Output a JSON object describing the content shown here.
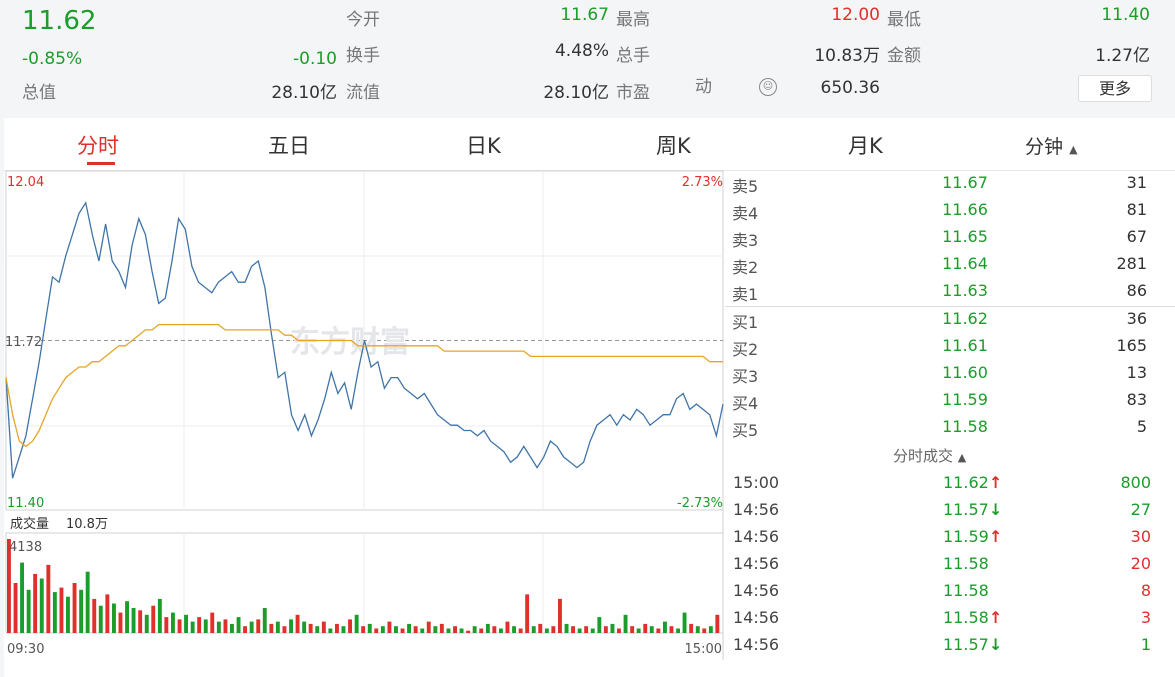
{
  "header": {
    "price": "11.62",
    "change_pct": "-0.85%",
    "change": "-0.10",
    "open_label": "今开",
    "open_value": "11.67",
    "high_label": "最高",
    "high_value": "12.00",
    "low_label": "最低",
    "low_value": "11.40",
    "turnover_label": "换手",
    "turnover_value": "4.48%",
    "volume_label": "总手",
    "volume_value": "10.83万",
    "amount_label": "金额",
    "amount_value": "1.27亿",
    "mktcap_label": "总值",
    "mktcap_value": "28.10亿",
    "float_label": "流值",
    "float_value": "28.10亿",
    "pe_label": "市盈",
    "pe_suffix": "动",
    "pe_value": "650.36",
    "more_button": "更多",
    "emoji_icon": "smiley-icon",
    "colors": {
      "up": "#e0302b",
      "down": "#1a9d2a"
    }
  },
  "tabs": [
    "分时",
    "五日",
    "日K",
    "周K",
    "月K",
    "分钟"
  ],
  "active_tab": "分时",
  "chart_labels": {
    "price_max": "12.04",
    "price_min": "11.40",
    "price_ref": "11.72",
    "pct_max": "2.73%",
    "pct_min": "-2.73%",
    "volume_title": "成交量",
    "volume_total": "10.8万",
    "volume_max": "4138",
    "time_start": "09:30",
    "time_end": "15:00",
    "watermark": "东方财富"
  },
  "chart_data": [
    {
      "type": "line",
      "title": "",
      "ylim": [
        11.4,
        12.04
      ],
      "ref_price": 11.72,
      "xlabels": [
        "09:30",
        "15:00"
      ],
      "series": [
        {
          "values": [
            11.65,
            11.46,
            11.5,
            11.54,
            11.61,
            11.68,
            11.76,
            11.84,
            11.83,
            11.88,
            11.92,
            11.96,
            11.98,
            11.92,
            11.87,
            11.94,
            11.87,
            11.85,
            11.82,
            11.9,
            11.95,
            11.92,
            11.85,
            11.79,
            11.8,
            11.87,
            11.95,
            11.93,
            11.86,
            11.83,
            11.82,
            11.81,
            11.83,
            11.84,
            11.85,
            11.83,
            11.83,
            11.86,
            11.87,
            11.82,
            11.73,
            11.65,
            11.66,
            11.58,
            11.55,
            11.58,
            11.54,
            11.57,
            11.61,
            11.66,
            11.62,
            11.64,
            11.59,
            11.66,
            11.72,
            11.67,
            11.68,
            11.63,
            11.65,
            11.65,
            11.63,
            11.62,
            11.61,
            11.62,
            11.6,
            11.58,
            11.57,
            11.56,
            11.56,
            11.55,
            11.55,
            11.54,
            11.55,
            11.53,
            11.52,
            11.51,
            11.49,
            11.5,
            11.52,
            11.5,
            11.48,
            11.5,
            11.53,
            11.52,
            11.5,
            11.49,
            11.48,
            11.49,
            11.53,
            11.56,
            11.57,
            11.58,
            11.56,
            11.58,
            11.57,
            11.59,
            11.58,
            11.56,
            11.57,
            11.58,
            11.58,
            11.61,
            11.62,
            11.59,
            11.6,
            11.59,
            11.58,
            11.54,
            11.6
          ]
        },
        {
          "name": "",
          "values": [
            11.65,
            11.58,
            11.53,
            11.52,
            11.53,
            11.55,
            11.58,
            11.61,
            11.63,
            11.65,
            11.66,
            11.67,
            11.67,
            11.68,
            11.68,
            11.69,
            11.7,
            11.71,
            11.71,
            11.72,
            11.73,
            11.74,
            11.74,
            11.75,
            11.75,
            11.75,
            11.75,
            11.75,
            11.75,
            11.75,
            11.75,
            11.75,
            11.75,
            11.74,
            11.74,
            11.74,
            11.74,
            11.74,
            11.74,
            11.74,
            11.74,
            11.74,
            11.73,
            11.73,
            11.72,
            11.72,
            11.72,
            11.72,
            11.72,
            11.72,
            11.72,
            11.72,
            11.72,
            11.71,
            11.71,
            11.71,
            11.71,
            11.71,
            11.71,
            11.71,
            11.71,
            11.71,
            11.71,
            11.71,
            11.71,
            11.71,
            11.7,
            11.7,
            11.7,
            11.7,
            11.7,
            11.7,
            11.7,
            11.7,
            11.7,
            11.7,
            11.7,
            11.7,
            11.7,
            11.69,
            11.69,
            11.69,
            11.69,
            11.69,
            11.69,
            11.69,
            11.69,
            11.69,
            11.69,
            11.69,
            11.69,
            11.69,
            11.69,
            11.69,
            11.69,
            11.69,
            11.69,
            11.69,
            11.69,
            11.69,
            11.69,
            11.69,
            11.69,
            11.69,
            11.69,
            11.69,
            11.68,
            11.68,
            11.68
          ]
        }
      ]
    },
    {
      "type": "bar",
      "title": "成交量",
      "ylim": [
        0,
        4138
      ],
      "xlabels": [
        "09:30",
        "15:00"
      ],
      "values": [
        4138,
        2200,
        3100,
        1900,
        2600,
        2400,
        3000,
        1800,
        2000,
        1600,
        2200,
        1900,
        2700,
        1500,
        1200,
        1700,
        1300,
        900,
        1400,
        1100,
        1000,
        800,
        1200,
        1500,
        700,
        900,
        600,
        800,
        500,
        700,
        600,
        900,
        500,
        600,
        400,
        700,
        300,
        500,
        600,
        1100,
        400,
        500,
        300,
        600,
        800,
        500,
        400,
        300,
        500,
        200,
        400,
        300,
        600,
        800,
        300,
        400,
        200,
        300,
        500,
        300,
        200,
        400,
        300,
        200,
        500,
        300,
        400,
        200,
        300,
        200,
        100,
        300,
        200,
        400,
        300,
        200,
        500,
        300,
        200,
        1700,
        300,
        400,
        200,
        300,
        1500,
        400,
        300,
        200,
        300,
        200,
        700,
        300,
        400,
        200,
        800,
        300,
        200,
        400,
        300,
        200,
        500,
        300,
        200,
        900,
        400,
        300,
        200,
        300,
        800
      ],
      "colors": [
        "up",
        "up",
        "down",
        "down",
        "up",
        "down",
        "up",
        "down",
        "up",
        "down",
        "up",
        "down",
        "down",
        "up",
        "down",
        "up",
        "down",
        "up",
        "down",
        "down",
        "up",
        "down",
        "up",
        "down",
        "up",
        "down",
        "up",
        "down",
        "down",
        "up",
        "down",
        "up",
        "down",
        "up",
        "down",
        "down",
        "up",
        "down",
        "up",
        "down",
        "up",
        "down",
        "up",
        "down",
        "up",
        "down",
        "up",
        "down",
        "up",
        "down",
        "up",
        "down",
        "up",
        "down",
        "up",
        "down",
        "up",
        "down",
        "up",
        "down",
        "up",
        "down",
        "up",
        "down",
        "up",
        "down",
        "up",
        "down",
        "up",
        "down",
        "up",
        "down",
        "up",
        "down",
        "up",
        "down",
        "up",
        "down",
        "up",
        "up",
        "down",
        "up",
        "down",
        "up",
        "up",
        "down",
        "up",
        "down",
        "up",
        "down",
        "down",
        "up",
        "down",
        "up",
        "down",
        "up",
        "down",
        "up",
        "down",
        "up",
        "down",
        "up",
        "down",
        "down",
        "up",
        "down",
        "up",
        "down",
        "up",
        "down",
        "up"
      ]
    }
  ],
  "orderbook": {
    "asks": [
      {
        "label": "卖5",
        "price": "11.67",
        "vol": "31"
      },
      {
        "label": "卖4",
        "price": "11.66",
        "vol": "81"
      },
      {
        "label": "卖3",
        "price": "11.65",
        "vol": "67"
      },
      {
        "label": "卖2",
        "price": "11.64",
        "vol": "281"
      },
      {
        "label": "卖1",
        "price": "11.63",
        "vol": "86"
      }
    ],
    "bids": [
      {
        "label": "买1",
        "price": "11.62",
        "vol": "36"
      },
      {
        "label": "买2",
        "price": "11.61",
        "vol": "165"
      },
      {
        "label": "买3",
        "price": "11.60",
        "vol": "13"
      },
      {
        "label": "买4",
        "price": "11.59",
        "vol": "83"
      },
      {
        "label": "买5",
        "price": "11.58",
        "vol": "5"
      }
    ]
  },
  "trades_title": "分时成交",
  "trades": [
    {
      "time": "15:00",
      "price": "11.62",
      "dir": "up",
      "arrow": "↑",
      "vol": "800",
      "vol_color": "down"
    },
    {
      "time": "14:56",
      "price": "11.57",
      "dir": "down",
      "arrow": "↓",
      "vol": "27",
      "vol_color": "down"
    },
    {
      "time": "14:56",
      "price": "11.59",
      "dir": "up",
      "arrow": "↑",
      "vol": "30",
      "vol_color": "up"
    },
    {
      "time": "14:56",
      "price": "11.58",
      "dir": "none",
      "arrow": "",
      "vol": "20",
      "vol_color": "up"
    },
    {
      "time": "14:56",
      "price": "11.58",
      "dir": "none",
      "arrow": "",
      "vol": "8",
      "vol_color": "up"
    },
    {
      "time": "14:56",
      "price": "11.58",
      "dir": "up",
      "arrow": "↑",
      "vol": "3",
      "vol_color": "up"
    },
    {
      "time": "14:56",
      "price": "11.57",
      "dir": "down",
      "arrow": "↓",
      "vol": "1",
      "vol_color": "down"
    }
  ]
}
